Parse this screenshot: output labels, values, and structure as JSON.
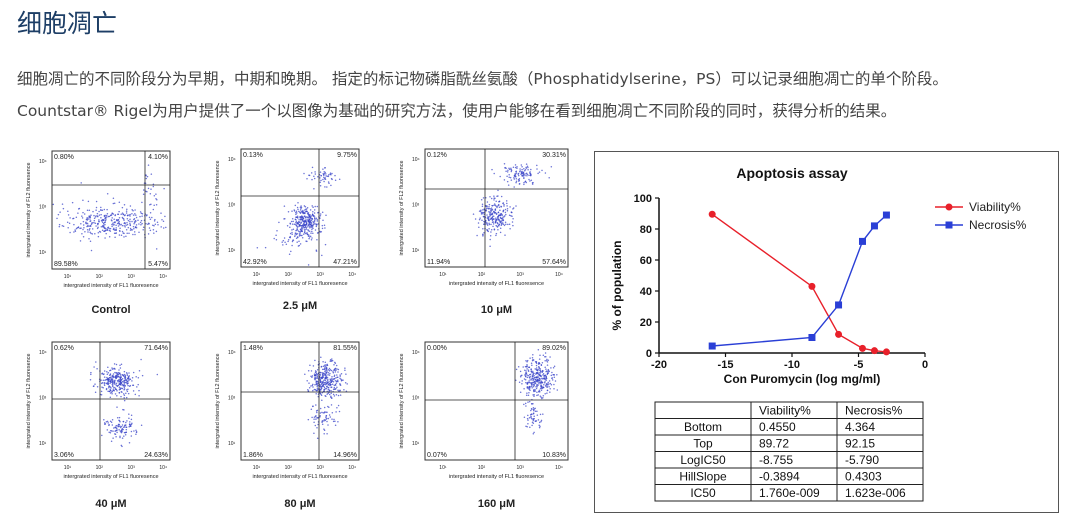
{
  "heading": "细胞凋亡",
  "paragraph": {
    "line1": "细胞凋亡的不同阶段分为早期，中期和晚期。 指定的标记物磷脂酰丝氨酸（Phosphatidylserine，PS）可以记录细胞凋亡的单个阶段。",
    "line2": "Countstar® Rigel为用户提供了一个以图像为基础的研究方法，使用户能够在看到细胞凋亡不同阶段的同时，获得分析的结果。"
  },
  "flow_axis": {
    "xlabel": "intergrated intensity of FL1 fluoresence",
    "ylabel": "intergrated intensity of FL2 fluoresence"
  },
  "chart_data": [
    {
      "type": "scatter",
      "label": "Control",
      "quadrants": {
        "upper_left": "0.80%",
        "upper_right": "4.10%",
        "lower_left": "89.58%",
        "lower_right": "5.47%"
      }
    },
    {
      "type": "scatter",
      "label": "2.5 μM",
      "quadrants": {
        "upper_left": "0.13%",
        "upper_right": "9.75%",
        "lower_left": "42.92%",
        "lower_right": "47.21%"
      }
    },
    {
      "type": "scatter",
      "label": "10 μM",
      "quadrants": {
        "upper_left": "0.12%",
        "upper_right": "30.31%",
        "lower_left": "11.94%",
        "lower_right": "57.64%"
      }
    },
    {
      "type": "scatter",
      "label": "40 μM",
      "quadrants": {
        "upper_left": "0.62%",
        "upper_right": "71.64%",
        "lower_left": "3.06%",
        "lower_right": "24.63%"
      }
    },
    {
      "type": "scatter",
      "label": "80 μM",
      "quadrants": {
        "upper_left": "1.48%",
        "upper_right": "81.55%",
        "lower_left": "1.86%",
        "lower_right": "14.96%"
      }
    },
    {
      "type": "scatter",
      "label": "160 μM",
      "quadrants": {
        "upper_left": "0.00%",
        "upper_right": "89.02%",
        "lower_left": "0.07%",
        "lower_right": "10.83%"
      }
    },
    {
      "type": "line",
      "title": "Apoptosis assay",
      "xlabel": "Con Puromycin (log mg/ml)",
      "ylabel": "% of population",
      "xlim": [
        -20,
        0
      ],
      "ylim": [
        0,
        100
      ],
      "xticks": [
        "-20",
        "-15",
        "-10",
        "-5",
        "0"
      ],
      "yticks": [
        "0",
        "20",
        "40",
        "60",
        "80",
        "100"
      ],
      "legend_position": "top-right",
      "series": [
        {
          "name": "Viability%",
          "color": "#e8202a",
          "marker": "circle",
          "x": [
            -16,
            -8.5,
            -6.5,
            -4.7,
            -3.8,
            -2.9
          ],
          "y": [
            89.5,
            43,
            12,
            3,
            1.5,
            0.7
          ]
        },
        {
          "name": "Necrosis%",
          "color": "#2a3fd6",
          "marker": "square",
          "x": [
            -16,
            -8.5,
            -6.5,
            -4.7,
            -3.8,
            -2.9
          ],
          "y": [
            4.5,
            10,
            31,
            72,
            82,
            89
          ]
        }
      ],
      "table": {
        "headers": [
          "",
          "Viability%",
          "Necrosis%"
        ],
        "rows": [
          [
            "Bottom",
            "0.4550",
            "4.364"
          ],
          [
            "Top",
            "89.72",
            "92.15"
          ],
          [
            "LogIC50",
            "-8.755",
            "-5.790"
          ],
          [
            "HillSlope",
            "-0.3894",
            "0.4303"
          ],
          [
            "IC50",
            "1.760e-009",
            "1.623e-006"
          ]
        ]
      }
    }
  ],
  "colors": {
    "heading": "#1d3e66",
    "dot": "#3a44c8",
    "viability": "#e8202a",
    "necrosis": "#2a3fd6"
  }
}
